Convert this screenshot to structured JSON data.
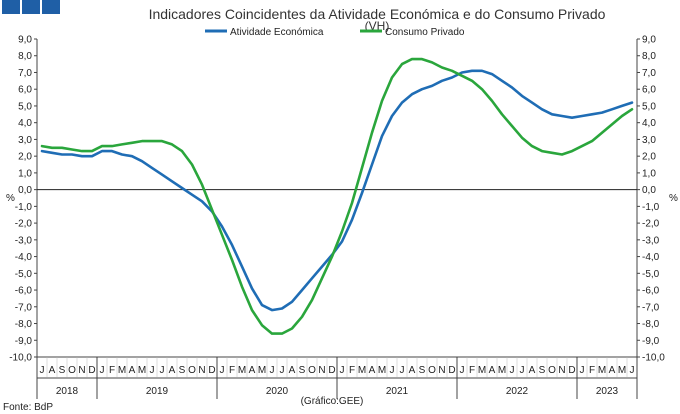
{
  "chart_data": {
    "type": "line",
    "title": "Indicadores Coincidentes da Atividade Económica e do Consumo Privado",
    "subtitle": "(VH)",
    "ylabel_left": "%",
    "ylabel_right": "%",
    "ylim": [
      -10,
      9
    ],
    "yticks": [
      "9,0",
      "8,0",
      "7,0",
      "6,0",
      "5,0",
      "4,0",
      "3,0",
      "2,0",
      "1,0",
      "0,0",
      "-1,0",
      "-2,0",
      "-3,0",
      "-4,0",
      "-5,0",
      "-6,0",
      "-7,0",
      "-8,0",
      "-9,0",
      "-10,0"
    ],
    "grid": false,
    "legend_position": "top",
    "month_labels": [
      "J",
      "A",
      "S",
      "O",
      "N",
      "D",
      "J",
      "F",
      "M",
      "A",
      "M",
      "J",
      "J",
      "A",
      "S",
      "O",
      "N",
      "D",
      "J",
      "F",
      "M",
      "A",
      "M",
      "J",
      "J",
      "A",
      "S",
      "O",
      "N",
      "D",
      "J",
      "F",
      "M",
      "A",
      "M",
      "J",
      "J",
      "A",
      "S",
      "O",
      "N",
      "D",
      "J",
      "F",
      "M",
      "A",
      "M",
      "J",
      "J",
      "A",
      "S",
      "O",
      "N",
      "D",
      "J",
      "F",
      "M",
      "A",
      "M",
      "J"
    ],
    "years": [
      {
        "label": "2018",
        "start": 0,
        "months": 6
      },
      {
        "label": "2019",
        "start": 6,
        "months": 12
      },
      {
        "label": "2020",
        "start": 18,
        "months": 12
      },
      {
        "label": "2021",
        "start": 30,
        "months": 12
      },
      {
        "label": "2022",
        "start": 42,
        "months": 12
      },
      {
        "label": "2023",
        "start": 54,
        "months": 6
      }
    ],
    "series": [
      {
        "name": "Atividade Económica",
        "color": "#1f6db5",
        "values": [
          2.3,
          2.2,
          2.1,
          2.1,
          2.0,
          2.0,
          2.3,
          2.3,
          2.1,
          2.0,
          1.7,
          1.3,
          0.9,
          0.5,
          0.1,
          -0.3,
          -0.7,
          -1.3,
          -2.2,
          -3.3,
          -4.6,
          -5.9,
          -6.9,
          -7.2,
          -7.1,
          -6.7,
          -6.0,
          -5.3,
          -4.6,
          -3.9,
          -3.1,
          -1.8,
          -0.2,
          1.5,
          3.2,
          4.4,
          5.2,
          5.7,
          6.0,
          6.2,
          6.5,
          6.7,
          7.0,
          7.1,
          7.1,
          6.9,
          6.5,
          6.1,
          5.6,
          5.2,
          4.8,
          4.5,
          4.4,
          4.3,
          4.4,
          4.5,
          4.6,
          4.8,
          5.0,
          5.2
        ]
      },
      {
        "name": "Consumo Privado",
        "color": "#2aa63c",
        "values": [
          2.6,
          2.5,
          2.5,
          2.4,
          2.3,
          2.3,
          2.6,
          2.6,
          2.7,
          2.8,
          2.9,
          2.9,
          2.9,
          2.7,
          2.3,
          1.5,
          0.3,
          -1.2,
          -2.7,
          -4.2,
          -5.8,
          -7.2,
          -8.1,
          -8.6,
          -8.6,
          -8.3,
          -7.6,
          -6.6,
          -5.3,
          -4.0,
          -2.5,
          -0.8,
          1.3,
          3.4,
          5.3,
          6.7,
          7.5,
          7.8,
          7.8,
          7.6,
          7.3,
          7.1,
          6.8,
          6.5,
          6.0,
          5.3,
          4.5,
          3.8,
          3.1,
          2.6,
          2.3,
          2.2,
          2.1,
          2.3,
          2.6,
          2.9,
          3.4,
          3.9,
          4.4,
          4.8
        ]
      }
    ],
    "footer_left": "Fonte: BdP",
    "footer_center": "(Gráfico:GEE)"
  }
}
